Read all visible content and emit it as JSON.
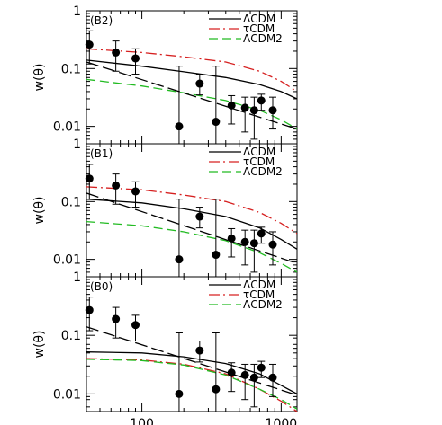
{
  "chart_data": [
    {
      "type": "line",
      "panel": "(B2)",
      "xscale": "log",
      "yscale": "log",
      "xlim": [
        40,
        1300
      ],
      "ylim": [
        0.005,
        1
      ],
      "xlabel": "",
      "ylabel": "w(θ)",
      "yticks": [
        "1",
        "0.1",
        "0.01"
      ],
      "xticks": [],
      "legend_position": "top-right",
      "series": [
        {
          "name": "ΛCDM",
          "color": "#000000",
          "style": "solid",
          "x": [
            40,
            100,
            200,
            400,
            700,
            1000,
            1300
          ],
          "y": [
            0.14,
            0.11,
            0.088,
            0.07,
            0.053,
            0.04,
            0.03
          ]
        },
        {
          "name": "τCDM",
          "color": "#d62020",
          "style": "dashdot",
          "x": [
            40,
            100,
            200,
            400,
            700,
            1000,
            1300
          ],
          "y": [
            0.22,
            0.19,
            0.16,
            0.13,
            0.09,
            0.06,
            0.04
          ]
        },
        {
          "name": "ΛCDM2",
          "color": "#22bb22",
          "style": "dashed",
          "x": [
            40,
            100,
            200,
            400,
            700,
            1000,
            1300
          ],
          "y": [
            0.065,
            0.05,
            0.038,
            0.028,
            0.019,
            0.013,
            0.009
          ]
        },
        {
          "name": "",
          "color": "#000000",
          "style": "longdash",
          "x": [
            40,
            1300
          ],
          "y": [
            0.13,
            0.009
          ]
        }
      ],
      "points": {
        "x": [
          42,
          65,
          90,
          185,
          260,
          340,
          440,
          550,
          640,
          720,
          870
        ],
        "y": [
          0.26,
          0.19,
          0.15,
          0.01,
          0.055,
          0.012,
          0.023,
          0.021,
          0.019,
          0.028,
          0.019
        ],
        "ylo": [
          0.12,
          0.09,
          0.08,
          0.0001,
          0.035,
          0.0001,
          0.011,
          0.008,
          0.006,
          0.019,
          0.009
        ],
        "yhi": [
          0.45,
          0.3,
          0.22,
          0.11,
          0.08,
          0.11,
          0.034,
          0.032,
          0.032,
          0.036,
          0.032
        ]
      }
    },
    {
      "type": "line",
      "panel": "(B1)",
      "xscale": "log",
      "yscale": "log",
      "xlim": [
        40,
        1300
      ],
      "ylim": [
        0.005,
        1
      ],
      "xlabel": "",
      "ylabel": "w(θ)",
      "yticks": [
        "1",
        "0.1",
        "0.01"
      ],
      "xticks": [],
      "legend_position": "top-right",
      "series": [
        {
          "name": "ΛCDM",
          "color": "#000000",
          "style": "solid",
          "x": [
            40,
            100,
            200,
            400,
            700,
            1000,
            1300
          ],
          "y": [
            0.11,
            0.095,
            0.075,
            0.055,
            0.035,
            0.022,
            0.015
          ]
        },
        {
          "name": "τCDM",
          "color": "#d62020",
          "style": "dashdot",
          "x": [
            40,
            100,
            200,
            400,
            700,
            1000,
            1300
          ],
          "y": [
            0.18,
            0.16,
            0.13,
            0.1,
            0.065,
            0.042,
            0.028
          ]
        },
        {
          "name": "ΛCDM2",
          "color": "#22bb22",
          "style": "dashed",
          "x": [
            40,
            100,
            200,
            400,
            700,
            1000,
            1300
          ],
          "y": [
            0.045,
            0.038,
            0.03,
            0.021,
            0.013,
            0.0085,
            0.006
          ]
        },
        {
          "name": "",
          "color": "#000000",
          "style": "longdash",
          "x": [
            40,
            1300
          ],
          "y": [
            0.14,
            0.0085
          ]
        }
      ],
      "points": {
        "x": [
          42,
          65,
          90,
          185,
          260,
          340,
          440,
          550,
          640,
          720,
          870
        ],
        "y": [
          0.25,
          0.19,
          0.15,
          0.01,
          0.055,
          0.012,
          0.023,
          0.02,
          0.019,
          0.028,
          0.018
        ],
        "ylo": [
          0.11,
          0.09,
          0.08,
          0.0001,
          0.035,
          0.0001,
          0.011,
          0.008,
          0.006,
          0.019,
          0.008
        ],
        "yhi": [
          0.44,
          0.3,
          0.22,
          0.11,
          0.08,
          0.11,
          0.034,
          0.032,
          0.032,
          0.036,
          0.03
        ]
      }
    },
    {
      "type": "line",
      "panel": "(B0)",
      "xscale": "log",
      "yscale": "log",
      "xlim": [
        40,
        1300
      ],
      "ylim": [
        0.005,
        1
      ],
      "xlabel": "",
      "ylabel": "w(θ)",
      "yticks": [
        "1",
        "0.1",
        "0.01"
      ],
      "xticks": [
        "100",
        "1000"
      ],
      "legend_position": "top-right",
      "series": [
        {
          "name": "ΛCDM",
          "color": "#000000",
          "style": "solid",
          "x": [
            40,
            100,
            200,
            400,
            700,
            1000,
            1300
          ],
          "y": [
            0.052,
            0.05,
            0.043,
            0.033,
            0.022,
            0.014,
            0.01
          ]
        },
        {
          "name": "τCDM",
          "color": "#d62020",
          "style": "dashdot",
          "x": [
            40,
            100,
            200,
            400,
            700,
            1000,
            1300
          ],
          "y": [
            0.04,
            0.038,
            0.032,
            0.022,
            0.012,
            0.0075,
            0.005
          ]
        },
        {
          "name": "ΛCDM2",
          "color": "#22bb22",
          "style": "dashed",
          "x": [
            40,
            100,
            200,
            400,
            700,
            1000,
            1300
          ],
          "y": [
            0.039,
            0.037,
            0.031,
            0.021,
            0.012,
            0.008,
            0.0055
          ]
        },
        {
          "name": "",
          "color": "#000000",
          "style": "longdash",
          "x": [
            40,
            1300
          ],
          "y": [
            0.14,
            0.0095
          ]
        }
      ],
      "points": {
        "x": [
          42,
          65,
          90,
          185,
          260,
          340,
          440,
          550,
          640,
          720,
          870
        ],
        "y": [
          0.27,
          0.19,
          0.15,
          0.01,
          0.055,
          0.012,
          0.023,
          0.021,
          0.019,
          0.028,
          0.019
        ],
        "ylo": [
          0.12,
          0.09,
          0.08,
          0.0001,
          0.035,
          0.0001,
          0.011,
          0.008,
          0.006,
          0.019,
          0.009
        ],
        "yhi": [
          0.45,
          0.3,
          0.22,
          0.11,
          0.08,
          0.11,
          0.034,
          0.032,
          0.032,
          0.036,
          0.032
        ]
      }
    }
  ]
}
